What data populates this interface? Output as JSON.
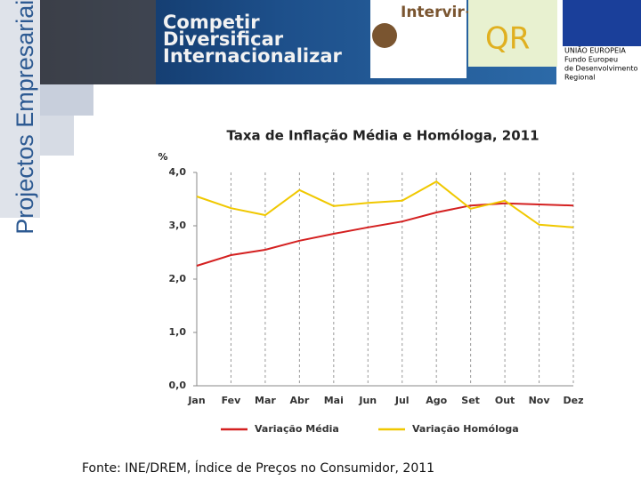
{
  "header": {
    "tagline": [
      "Competir",
      "Diversificar",
      "Internacionalizar"
    ],
    "side_title": "Projectos Empresariais",
    "program": "Intervir+",
    "eu": [
      "UNIÃO EUROPEIA",
      "Fundo Europeu",
      "de Desenvolvimento",
      "Regional"
    ]
  },
  "chart_data": {
    "type": "line",
    "title": "Taxa de Inflação Média e Homóloga, 2011",
    "y_label": "%",
    "categories": [
      "Jan",
      "Fev",
      "Mar",
      "Abr",
      "Mai",
      "Jun",
      "Jul",
      "Ago",
      "Set",
      "Out",
      "Nov",
      "Dez"
    ],
    "series": [
      {
        "name": "Variação Média",
        "color": "#d42020",
        "values": [
          2.25,
          2.45,
          2.55,
          2.72,
          2.85,
          2.97,
          3.08,
          3.25,
          3.38,
          3.42,
          3.4,
          3.38
        ]
      },
      {
        "name": "Variação Homóloga",
        "color": "#f0c800",
        "values": [
          3.55,
          3.33,
          3.2,
          3.67,
          3.37,
          3.43,
          3.47,
          3.83,
          3.32,
          3.47,
          3.02,
          2.97
        ]
      }
    ],
    "ylim": [
      0,
      4
    ],
    "yticks": [
      {
        "value": 0,
        "label": "0,0"
      },
      {
        "value": 1,
        "label": "1,0"
      },
      {
        "value": 2,
        "label": "2,0"
      },
      {
        "value": 3,
        "label": "3,0"
      },
      {
        "value": 4,
        "label": "4,0"
      }
    ],
    "grid": true,
    "legend": "bottom",
    "source": "Fonte: INE/DREM, Índice de Preços no Consumidor, 2011"
  }
}
